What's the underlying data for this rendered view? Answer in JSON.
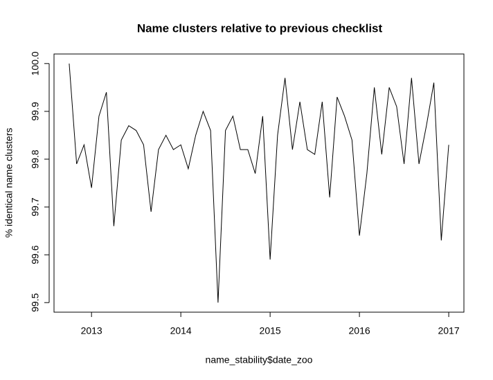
{
  "chart_data": {
    "type": "line",
    "title": "Name clusters relative to previous checklist",
    "x_label": "name_stability$date_zoo",
    "y_label": "% identical name clusters",
    "x": [
      2012.75,
      2012.8333,
      2012.9167,
      2013,
      2013.0833,
      2013.1667,
      2013.25,
      2013.3333,
      2013.4167,
      2013.5,
      2013.5833,
      2013.6667,
      2013.75,
      2013.8333,
      2013.9167,
      2014,
      2014.0833,
      2014.1667,
      2014.25,
      2014.3333,
      2014.4167,
      2014.5,
      2014.5833,
      2014.6667,
      2014.75,
      2014.8333,
      2014.9167,
      2015,
      2015.0833,
      2015.1667,
      2015.25,
      2015.3333,
      2015.4167,
      2015.5,
      2015.5833,
      2015.6667,
      2015.75,
      2015.8333,
      2015.9167,
      2016,
      2016.0833,
      2016.1667,
      2016.25,
      2016.3333,
      2016.4167,
      2016.5,
      2016.5833,
      2016.6667,
      2016.75,
      2016.8333,
      2016.9167,
      2017
    ],
    "series": [
      {
        "color": "#000000",
        "values": [
          100.0,
          99.79,
          99.83,
          99.74,
          99.89,
          99.94,
          99.66,
          99.84,
          99.87,
          99.86,
          99.83,
          99.69,
          99.82,
          99.85,
          99.82,
          99.83,
          99.78,
          99.85,
          99.9,
          99.86,
          99.5,
          99.86,
          99.89,
          99.82,
          99.82,
          99.77,
          99.89,
          99.59,
          99.85,
          99.97,
          99.82,
          99.92,
          99.82,
          99.81,
          99.92,
          99.72,
          99.93,
          99.89,
          99.84,
          99.64,
          99.77,
          99.95,
          99.81,
          99.95,
          99.91,
          99.79,
          99.97,
          99.79,
          99.87,
          99.96,
          99.63,
          99.83
        ]
      }
    ],
    "xlim": [
      2012.58,
      2017.17
    ],
    "ylim": [
      99.48,
      100.02
    ],
    "xticks": [
      2013,
      2014,
      2015,
      2016,
      2017
    ],
    "yticks": [
      99.5,
      99.6,
      99.7,
      99.8,
      99.9,
      {
        "value": 100,
        "label": "100.0"
      }
    ]
  }
}
